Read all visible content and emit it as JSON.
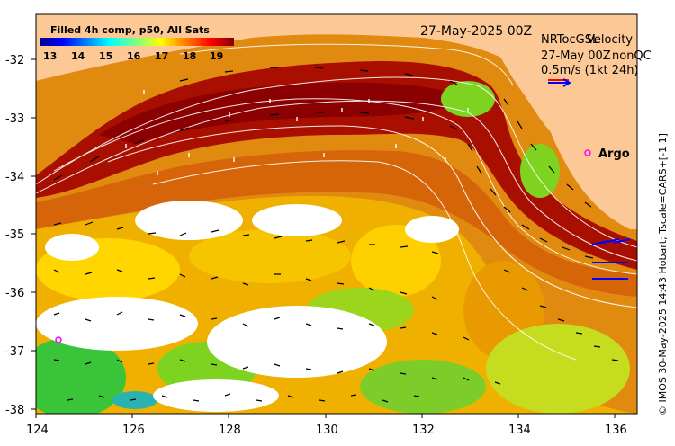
{
  "map": {
    "colorbar_title": "Filled 4h comp, p50, All Sats",
    "colorbar_ticks": [
      "13",
      "14",
      "15",
      "16",
      "17",
      "18",
      "19"
    ],
    "date_label": "27-May-2025 00Z",
    "legend_line1_a": "NRTocGSL",
    "legend_line1_b": "Velocity",
    "legend_line2_a": "27-May 00Z",
    "legend_line2_b": "nonQC",
    "legend_line3": "0.5m/s (1kt 24h)",
    "argo_label": "Argo",
    "credit": "© IMOS 30-May-2025 14:43 Hobart; Tscale=CARS+[-1 1]",
    "y_ticks": [
      "-32",
      "-33",
      "-34",
      "-35",
      "-36",
      "-37",
      "-38"
    ],
    "x_ticks": [
      "124",
      "126",
      "128",
      "130",
      "132",
      "134",
      "136"
    ],
    "colors": {
      "land": "#fcc895",
      "missing": "#ffffff",
      "argo_marker": "#ff00ff",
      "legend_arrow": "#0000ff",
      "legend_arrow_alt": "#ff0000",
      "contour": "#ffffff"
    }
  }
}
